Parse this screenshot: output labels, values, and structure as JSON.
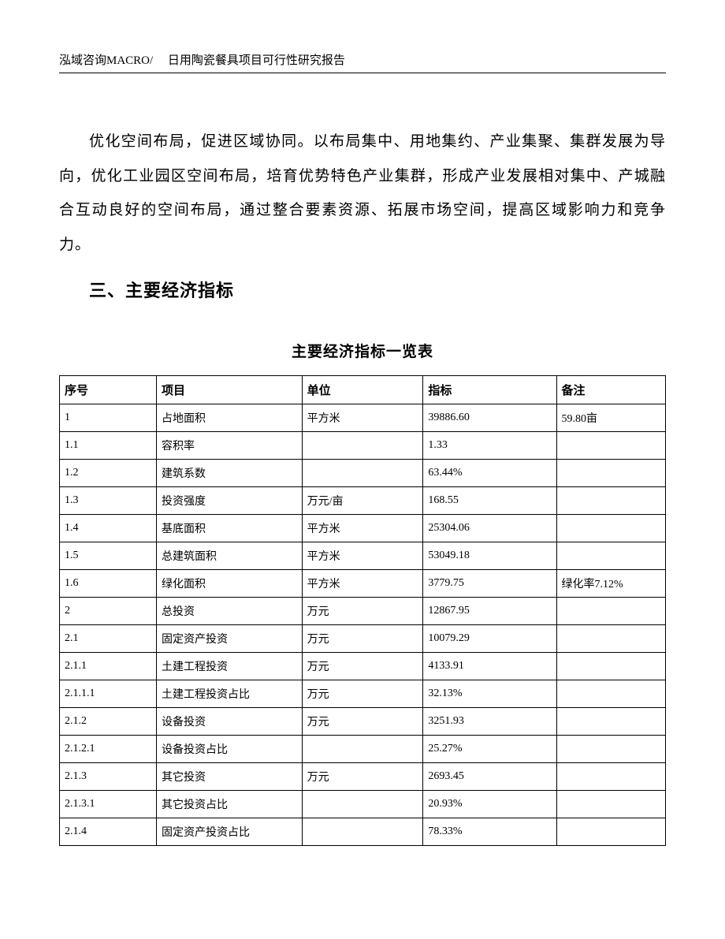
{
  "header": {
    "text": "泓域咨询MACRO/　 日用陶瓷餐具项目可行性研究报告"
  },
  "paragraph": "优化空间布局，促进区域协同。以布局集中、用地集约、产业集聚、集群发展为导向，优化工业园区空间布局，培育优势特色产业集群，形成产业发展相对集中、产城融合互动良好的空间布局，通过整合要素资源、拓展市场空间，提高区域影响力和竞争力。",
  "section_heading": "三、主要经济指标",
  "table": {
    "title": "主要经济指标一览表",
    "columns": [
      "序号",
      "项目",
      "单位",
      "指标",
      "备注"
    ],
    "rows": [
      [
        "1",
        "占地面积",
        "平方米",
        "39886.60",
        "59.80亩"
      ],
      [
        "1.1",
        "容积率",
        "",
        "1.33",
        ""
      ],
      [
        "1.2",
        "建筑系数",
        "",
        "63.44%",
        ""
      ],
      [
        "1.3",
        "投资强度",
        "万元/亩",
        "168.55",
        ""
      ],
      [
        "1.4",
        "基底面积",
        "平方米",
        "25304.06",
        ""
      ],
      [
        "1.5",
        "总建筑面积",
        "平方米",
        "53049.18",
        ""
      ],
      [
        "1.6",
        "绿化面积",
        "平方米",
        "3779.75",
        "绿化率7.12%"
      ],
      [
        "2",
        "总投资",
        "万元",
        "12867.95",
        ""
      ],
      [
        "2.1",
        "固定资产投资",
        "万元",
        "10079.29",
        ""
      ],
      [
        "2.1.1",
        "土建工程投资",
        "万元",
        "4133.91",
        ""
      ],
      [
        "2.1.1.1",
        "土建工程投资占比",
        "万元",
        "32.13%",
        ""
      ],
      [
        "2.1.2",
        "设备投资",
        "万元",
        "3251.93",
        ""
      ],
      [
        "2.1.2.1",
        "设备投资占比",
        "",
        "25.27%",
        ""
      ],
      [
        "2.1.3",
        "其它投资",
        "万元",
        "2693.45",
        ""
      ],
      [
        "2.1.3.1",
        "其它投资占比",
        "",
        "20.93%",
        ""
      ],
      [
        "2.1.4",
        "固定资产投资占比",
        "",
        "78.33%",
        ""
      ]
    ]
  }
}
